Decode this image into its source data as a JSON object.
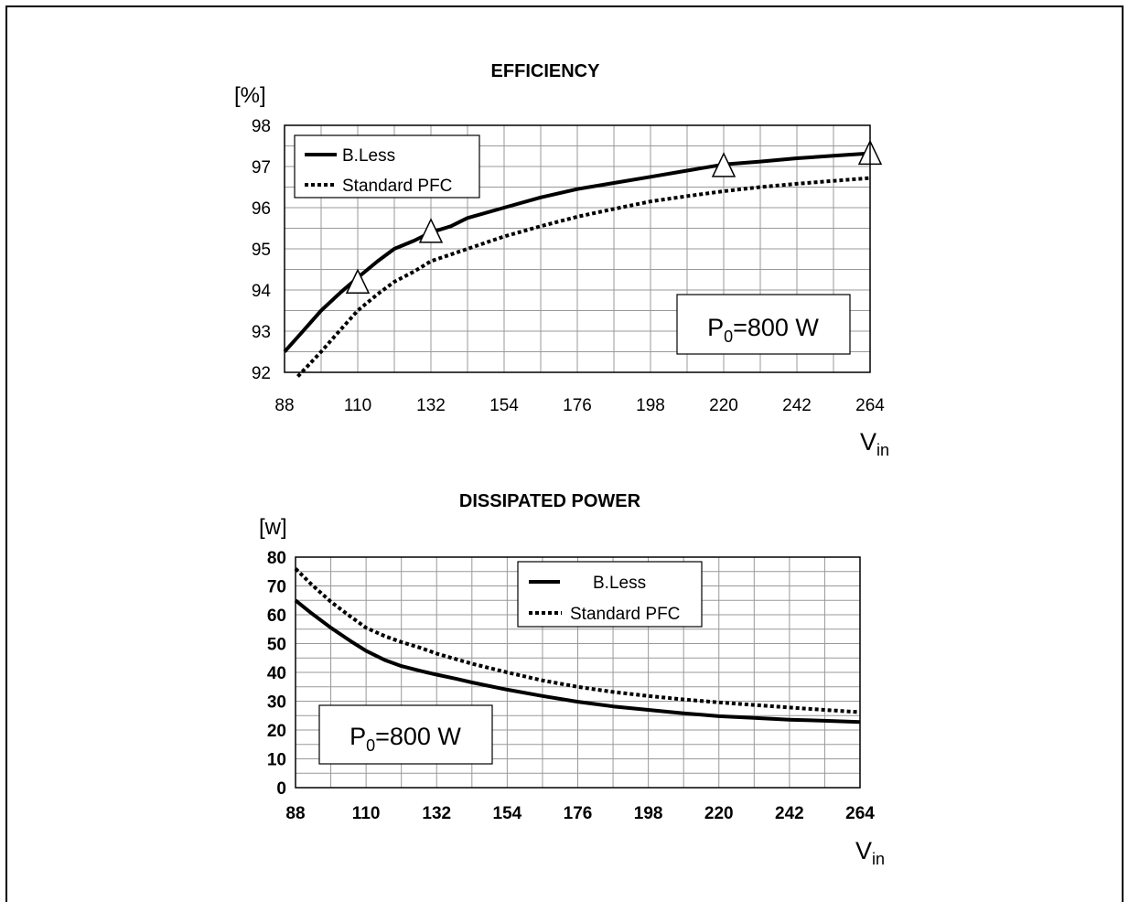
{
  "chart_data": [
    {
      "type": "line",
      "title": "EFFICIENCY",
      "ylabel": "[%]",
      "xlabel_main": "V",
      "xlabel_sub": "in",
      "ylim": [
        92,
        98
      ],
      "xlim": [
        88,
        264
      ],
      "xticks": [
        88,
        110,
        132,
        154,
        176,
        198,
        220,
        242,
        264
      ],
      "yticks": [
        92,
        93,
        94,
        95,
        96,
        97,
        98
      ],
      "grid": true,
      "legend_position": "top-left",
      "annotation_main": "P",
      "annotation_sub": "0",
      "annotation_rest": "=800 W",
      "series": [
        {
          "name": "B.Less",
          "style": "solid",
          "x": [
            88,
            93,
            99,
            105,
            110,
            116,
            121,
            127,
            132,
            138,
            143,
            154,
            165,
            176,
            187,
            198,
            209,
            220,
            231,
            242,
            253,
            264
          ],
          "y": [
            92.5,
            92.95,
            93.5,
            93.95,
            94.3,
            94.7,
            95.0,
            95.2,
            95.4,
            95.55,
            95.75,
            96.0,
            96.25,
            96.45,
            96.6,
            96.75,
            96.9,
            97.05,
            97.12,
            97.2,
            97.26,
            97.32
          ]
        },
        {
          "name": "Standard PFC",
          "style": "dotted",
          "x": [
            92,
            99,
            105,
            110,
            116,
            121,
            127,
            132,
            143,
            154,
            165,
            176,
            187,
            198,
            209,
            220,
            231,
            242,
            253,
            264
          ],
          "y": [
            91.9,
            92.5,
            93.05,
            93.5,
            93.9,
            94.2,
            94.45,
            94.7,
            95.0,
            95.3,
            95.55,
            95.78,
            95.97,
            96.15,
            96.28,
            96.4,
            96.5,
            96.58,
            96.65,
            96.72
          ]
        }
      ],
      "markers": [
        {
          "shape": "triangle",
          "x": 110,
          "y": 94.15
        },
        {
          "shape": "triangle",
          "x": 132,
          "y": 95.38
        },
        {
          "shape": "triangle",
          "x": 220,
          "y": 96.98
        },
        {
          "shape": "triangle",
          "x": 264,
          "y": 97.28
        }
      ]
    },
    {
      "type": "line",
      "title": "DISSIPATED POWER",
      "ylabel": "[w]",
      "xlabel_main": "V",
      "xlabel_sub": "in",
      "ylim": [
        0,
        80
      ],
      "xlim": [
        88,
        264
      ],
      "xticks": [
        88,
        110,
        132,
        154,
        176,
        198,
        220,
        242,
        264
      ],
      "yticks": [
        0,
        10,
        20,
        30,
        40,
        50,
        60,
        70,
        80
      ],
      "grid": true,
      "legend_position": "top-center",
      "annotation_main": "P",
      "annotation_sub": "0",
      "annotation_rest": "=800 W",
      "series": [
        {
          "name": "B.Less",
          "style": "solid",
          "x": [
            88,
            93,
            99,
            105,
            110,
            116,
            121,
            127,
            132,
            138,
            143,
            154,
            165,
            176,
            187,
            198,
            209,
            220,
            231,
            242,
            253,
            264
          ],
          "y": [
            65,
            60.5,
            55.5,
            51,
            47.5,
            44.2,
            42.2,
            40.5,
            39.2,
            37.8,
            36.5,
            34,
            31.8,
            29.8,
            28.2,
            27,
            25.8,
            24.8,
            24.2,
            23.6,
            23.2,
            22.8
          ]
        },
        {
          "name": "Standard PFC",
          "style": "dotted",
          "x": [
            88,
            93,
            99,
            105,
            110,
            116,
            121,
            127,
            132,
            143,
            154,
            165,
            176,
            187,
            198,
            209,
            220,
            231,
            242,
            253,
            264
          ],
          "y": [
            76,
            70.5,
            64.5,
            59.5,
            55.5,
            52.5,
            50.5,
            48.5,
            46.5,
            43,
            40,
            37.2,
            35,
            33.2,
            31.8,
            30.6,
            29.6,
            28.7,
            27.8,
            27,
            26.2
          ]
        }
      ]
    }
  ]
}
